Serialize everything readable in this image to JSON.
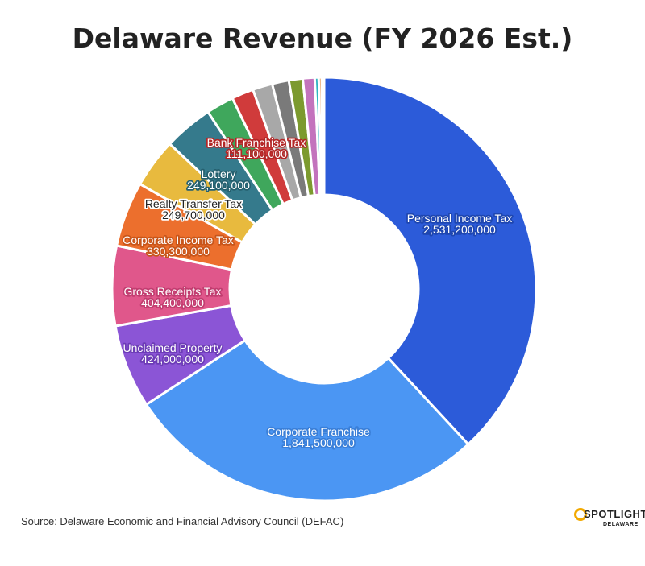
{
  "chart_data": {
    "type": "pie",
    "title": "Delaware Revenue (FY 2026 Est.)",
    "slices": [
      {
        "name": "Personal Income Tax",
        "value": 2531200000,
        "value_label": "2,531,200,000",
        "color": "#2c5bd9",
        "label_fill": "#ffffff",
        "label_stroke": "#1e46b0",
        "show_label": true
      },
      {
        "name": "Corporate Franchise",
        "value": 1841500000,
        "value_label": "1,841,500,000",
        "color": "#4b96f3",
        "label_fill": "#ffffff",
        "label_stroke": "#3a7fd8",
        "show_label": true
      },
      {
        "name": "Unclaimed Property",
        "value": 424000000,
        "value_label": "424,000,000",
        "color": "#8b55d6",
        "label_fill": "#ffffff",
        "label_stroke": "#6d3cb7",
        "show_label": true
      },
      {
        "name": "Gross Receipts Tax",
        "value": 404400000,
        "value_label": "404,400,000",
        "color": "#e0578b",
        "label_fill": "#ffffff",
        "label_stroke": "#c23d70",
        "show_label": true
      },
      {
        "name": "Corporate Income Tax",
        "value": 330300000,
        "value_label": "330,300,000",
        "color": "#ec6f2d",
        "label_fill": "#ffffff",
        "label_stroke": "#c8551a",
        "show_label": true
      },
      {
        "name": "Realty Transfer Tax",
        "value": 249700000,
        "value_label": "249,700,000",
        "color": "#e8ba3e",
        "label_fill": "#222222",
        "label_stroke": "#ffffff",
        "show_label": true
      },
      {
        "name": "Lottery",
        "value": 249100000,
        "value_label": "249,100,000",
        "color": "#357a8c",
        "label_fill": "#ffffff",
        "label_stroke": "#25606f",
        "show_label": true
      },
      {
        "name": "",
        "value": 140000000,
        "color": "#3fa75c",
        "show_label": false
      },
      {
        "name": "Bank Franchise Tax",
        "value": 111100000,
        "value_label": "111,100,000",
        "color": "#d03b3b",
        "label_fill": "#ffffff",
        "label_stroke": "#b32727",
        "show_label": true
      },
      {
        "name": "",
        "value": 100000000,
        "color": "#a8a8a8",
        "show_label": false
      },
      {
        "name": "",
        "value": 85000000,
        "color": "#7a7a7a",
        "show_label": false
      },
      {
        "name": "",
        "value": 70000000,
        "color": "#7c9a2e",
        "show_label": false
      },
      {
        "name": "",
        "value": 60000000,
        "color": "#c373bd",
        "show_label": false
      },
      {
        "name": "",
        "value": 20000000,
        "color": "#2fb4c3",
        "show_label": false
      },
      {
        "name": "",
        "value": 15000000,
        "color": "#e07a20",
        "show_label": false
      },
      {
        "name": "",
        "value": 12000000,
        "color": "#8aa0e8",
        "show_label": false
      }
    ]
  },
  "source": "Source: Delaware Economic and Financial Advisory Council (DEFAC)",
  "logo": {
    "word": "SPOTLIGHT",
    "sub": "DELAWARE"
  }
}
